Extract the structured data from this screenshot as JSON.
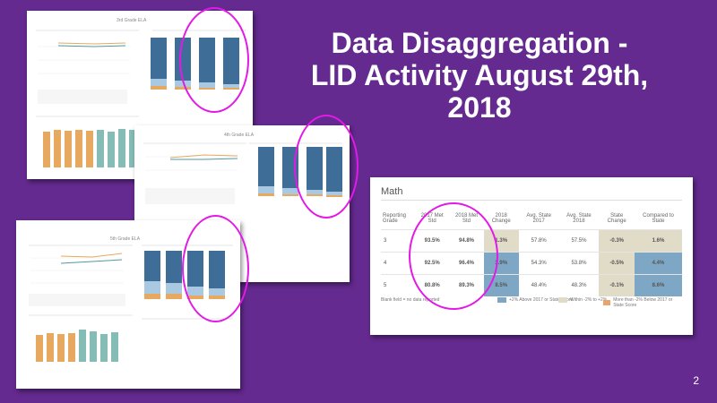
{
  "slide": {
    "title_line1": "Data Disaggregation  -",
    "title_line2": "LID Activity August 29th,",
    "title_line3": "2018",
    "page_number": "2"
  },
  "math_table": {
    "title": "Math",
    "headers": [
      "Reporting Grade",
      "2017 Met Std",
      "2018 Met Std",
      "2018 Change",
      "Avg. State 2017",
      "Avg. State 2018",
      "State Change",
      "Compared to State"
    ],
    "rows": [
      {
        "grade": "3",
        "met2017": "93.5%",
        "met2018": "94.8%",
        "change": "1.3%",
        "state2017": "57.8%",
        "state2018": "57.5%",
        "state_change": "-0.3%",
        "compared": "1.6%"
      },
      {
        "grade": "4",
        "met2017": "92.5%",
        "met2018": "96.4%",
        "change": "3.9%",
        "state2017": "54.3%",
        "state2018": "53.8%",
        "state_change": "-0.5%",
        "compared": "4.4%"
      },
      {
        "grade": "5",
        "met2017": "80.8%",
        "met2018": "89.3%",
        "change": "8.5%",
        "state2017": "48.4%",
        "state2018": "48.3%",
        "state_change": "-0.1%",
        "compared": "8.6%"
      }
    ],
    "footnote": "Blank field = no data reported",
    "legend": [
      {
        "label": "+2% Above 2017 or State Score",
        "color": "#7da7c4"
      },
      {
        "label": "Within -2% to +2%",
        "color": "#e0dcc8"
      },
      {
        "label": "More than -2% Below 2017 or State Score",
        "color": "#eba36b"
      }
    ]
  },
  "colors": {
    "background": "#642a8f",
    "highlight_circle": "#e21ae6",
    "bar_dark_blue": "#3e6d97",
    "bar_light_blue": "#a9c9e3",
    "bar_orange": "#e7a85f",
    "bar_teal": "#86bcb6",
    "above": "#7da7c4",
    "within": "#e0dcc8"
  },
  "thumbnails": {
    "t1_title": "3rd Grade ELA",
    "t2_title": "4th Grade ELA",
    "t3_title": "5th Grade ELA"
  }
}
